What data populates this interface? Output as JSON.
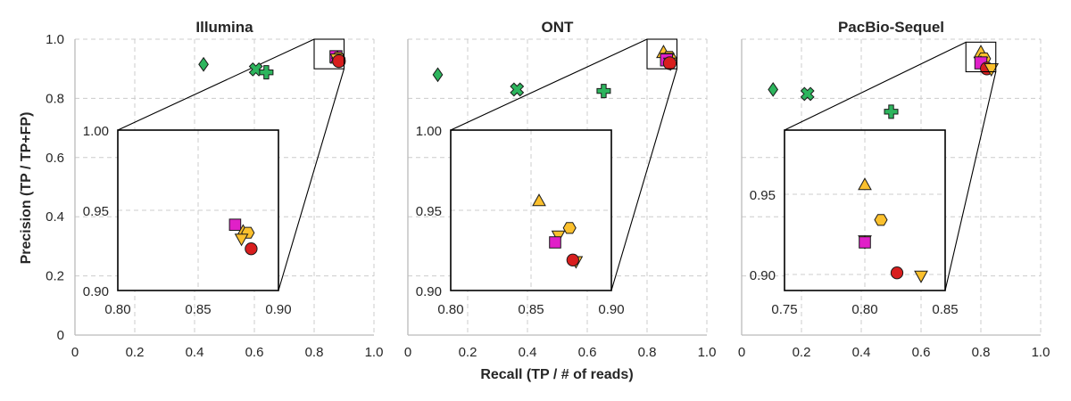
{
  "colors": {
    "grid": "#cccccc",
    "spine": "#bbbbbb",
    "inset_frame": "#000000",
    "green": "#2db55d",
    "yellow": "#fbc02d",
    "magenta": "#e020c8",
    "red": "#d81e1e"
  },
  "chart_data": {
    "type": "scatter",
    "ylabel": "Precision (TP / TP+FP)",
    "xlabel": "Recall (TP / # of reads)",
    "xlim": [
      0,
      1
    ],
    "ylim": [
      0,
      1
    ],
    "x_ticks": [
      "0",
      "0.2",
      "0.4",
      "0.6",
      "0.8",
      "1.0"
    ],
    "y_ticks": [
      "0",
      "0.2",
      "0.4",
      "0.6",
      "0.8",
      "1.0"
    ],
    "grid": true,
    "panels": [
      {
        "title": "Illumina",
        "points": [
          {
            "marker": "diamond",
            "color": "green",
            "x": 0.43,
            "y": 0.915
          },
          {
            "marker": "x",
            "color": "green",
            "x": 0.605,
            "y": 0.898
          },
          {
            "marker": "plus",
            "color": "green",
            "x": 0.64,
            "y": 0.888
          },
          {
            "marker": "square",
            "color": "magenta",
            "x": 0.873,
            "y": 0.941
          },
          {
            "marker": "triangle-up",
            "color": "yellow",
            "x": 0.878,
            "y": 0.937
          },
          {
            "marker": "hexagon",
            "color": "yellow",
            "x": 0.881,
            "y": 0.936
          },
          {
            "marker": "triangle-down",
            "color": "yellow",
            "x": 0.877,
            "y": 0.932
          },
          {
            "marker": "circle",
            "color": "red",
            "x": 0.883,
            "y": 0.926
          }
        ],
        "inset": {
          "xlim": [
            0.8,
            0.9
          ],
          "ylim": [
            0.9,
            1.0
          ],
          "x_ticks": [
            "0.80",
            "0.85",
            "0.90"
          ],
          "y_ticks": [
            "0.90",
            "0.95",
            "1.00"
          ]
        }
      },
      {
        "title": "ONT",
        "points": [
          {
            "marker": "diamond",
            "color": "green",
            "x": 0.1,
            "y": 0.88
          },
          {
            "marker": "x",
            "color": "green",
            "x": 0.365,
            "y": 0.83
          },
          {
            "marker": "plus",
            "color": "green",
            "x": 0.655,
            "y": 0.825
          },
          {
            "marker": "triangle-up",
            "color": "yellow",
            "x": 0.855,
            "y": 0.956
          },
          {
            "marker": "hexagon",
            "color": "yellow",
            "x": 0.874,
            "y": 0.939
          },
          {
            "marker": "triangle-down",
            "color": "yellow",
            "x": 0.867,
            "y": 0.934
          },
          {
            "marker": "square",
            "color": "magenta",
            "x": 0.865,
            "y": 0.93
          },
          {
            "marker": "triangle-down",
            "color": "yellow",
            "x": 0.878,
            "y": 0.918
          },
          {
            "marker": "circle",
            "color": "red",
            "x": 0.876,
            "y": 0.919
          }
        ],
        "inset": {
          "xlim": [
            0.8,
            0.9
          ],
          "ylim": [
            0.9,
            1.0
          ],
          "x_ticks": [
            "0.80",
            "0.85",
            "0.90"
          ],
          "y_ticks": [
            "0.90",
            "0.95",
            "1.00"
          ]
        }
      },
      {
        "title": "PacBio-Sequel",
        "points": [
          {
            "marker": "diamond",
            "color": "green",
            "x": 0.105,
            "y": 0.83
          },
          {
            "marker": "x",
            "color": "green",
            "x": 0.22,
            "y": 0.815
          },
          {
            "marker": "plus",
            "color": "green",
            "x": 0.5,
            "y": 0.755
          },
          {
            "marker": "triangle-up",
            "color": "yellow",
            "x": 0.8,
            "y": 0.956
          },
          {
            "marker": "hexagon",
            "color": "yellow",
            "x": 0.81,
            "y": 0.934
          },
          {
            "marker": "triangle-down",
            "color": "yellow",
            "x": 0.8,
            "y": 0.921
          },
          {
            "marker": "diamond",
            "color": "magenta",
            "x": 0.8,
            "y": 0.92
          },
          {
            "marker": "square",
            "color": "magenta",
            "x": 0.8,
            "y": 0.92
          },
          {
            "marker": "circle",
            "color": "red",
            "x": 0.82,
            "y": 0.901
          },
          {
            "marker": "triangle-down",
            "color": "yellow",
            "x": 0.835,
            "y": 0.899
          }
        ],
        "inset": {
          "xlim": [
            0.75,
            0.85
          ],
          "ylim": [
            0.89,
            0.99
          ],
          "x_ticks": [
            "0.75",
            "0.80",
            "0.85"
          ],
          "y_ticks": [
            "0.90",
            "0.95"
          ]
        }
      }
    ]
  }
}
